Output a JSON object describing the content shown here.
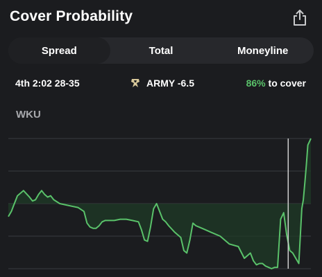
{
  "header": {
    "title": "Cover Probability"
  },
  "tabs": [
    {
      "label": "Spread",
      "active": true
    },
    {
      "label": "Total",
      "active": false
    },
    {
      "label": "Moneyline",
      "active": false
    }
  ],
  "game_info": {
    "clock_score": "4th 2:02 28-35",
    "team_line": "ARMY -6.5",
    "cover_pct": "86%",
    "cover_suffix": " to cover"
  },
  "chart_label": "WKU",
  "colors": {
    "background": "#1b1c1f",
    "line": "#5ac26a",
    "fill": "#1f3a27",
    "grid": "#3a3b40"
  },
  "icons": {
    "share": "share-icon",
    "team_logo": "army-logo-icon"
  },
  "chart_data": {
    "type": "line",
    "title": "",
    "xlabel": "",
    "ylabel": "",
    "ylim": [
      0,
      100
    ],
    "xlim": [
      0,
      100
    ],
    "baseline": 50,
    "gridlines": [
      0,
      25,
      50,
      75,
      100
    ],
    "current_marker_x": 92.5,
    "series": [
      {
        "x": [
          0,
          1,
          2,
          3,
          5,
          7,
          8,
          9,
          10,
          11,
          12,
          13,
          14,
          15,
          17,
          19,
          21,
          23,
          25,
          26,
          27,
          28,
          29,
          30,
          31,
          32,
          33,
          34,
          35,
          37,
          39,
          41,
          43,
          44,
          45,
          46,
          47,
          48,
          49,
          50,
          51,
          52,
          53,
          55,
          57,
          58,
          59,
          60,
          61,
          62,
          63,
          65,
          67,
          70,
          73,
          76,
          78,
          79,
          80,
          81,
          82,
          83,
          84,
          85,
          86,
          87,
          88,
          89,
          90,
          91,
          92,
          93,
          94,
          95,
          96,
          97,
          97.5,
          98,
          98.5,
          99,
          100
        ],
        "y": [
          40,
          44,
          50,
          56,
          60,
          55,
          52,
          53,
          57,
          60,
          57,
          55,
          56,
          53,
          50,
          49,
          48,
          47,
          44,
          35,
          32,
          31,
          31,
          33,
          36,
          37,
          37,
          37,
          37,
          38,
          38,
          37,
          36,
          30,
          22,
          21,
          32,
          46,
          50,
          44,
          38,
          36,
          33,
          28,
          24,
          14,
          12,
          22,
          35,
          33,
          32,
          30,
          28,
          25,
          19,
          17,
          8,
          10,
          12,
          6,
          3,
          4,
          4,
          2,
          1,
          0,
          1,
          1,
          38,
          43,
          26,
          14,
          12,
          8,
          4,
          46,
          53,
          66,
          80,
          95,
          100
        ]
      }
    ]
  }
}
